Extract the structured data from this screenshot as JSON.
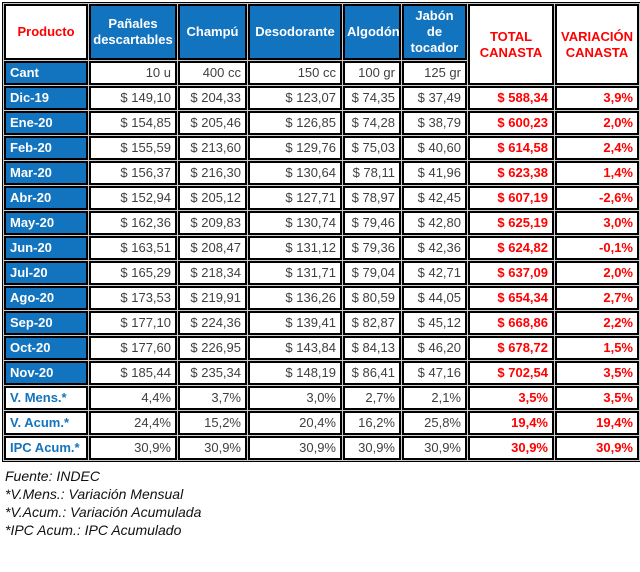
{
  "table": {
    "corner_header": "Producto",
    "qty_row_label": "Cant",
    "total_header": "TOTAL CANASTA",
    "variation_header": "VARIACIÓN CANASTA",
    "product_columns": [
      {
        "label": "Pañales descartables",
        "qty": "10 u"
      },
      {
        "label": "Champú",
        "qty": "400 cc"
      },
      {
        "label": "Desodorante",
        "qty": "150 cc"
      },
      {
        "label": "Algodón",
        "qty": "100 gr"
      },
      {
        "label": "Jabón de tocador",
        "qty": "125 gr"
      }
    ],
    "rows": [
      {
        "label": "Dic-19",
        "values": [
          "$ 149,10",
          "$ 204,33",
          "$ 123,07",
          "$ 74,35",
          "$ 37,49"
        ],
        "total": "$ 588,34",
        "variation": "3,9%"
      },
      {
        "label": "Ene-20",
        "values": [
          "$ 154,85",
          "$ 205,46",
          "$ 126,85",
          "$ 74,28",
          "$ 38,79"
        ],
        "total": "$ 600,23",
        "variation": "2,0%"
      },
      {
        "label": "Feb-20",
        "values": [
          "$ 155,59",
          "$ 213,60",
          "$ 129,76",
          "$ 75,03",
          "$ 40,60"
        ],
        "total": "$ 614,58",
        "variation": "2,4%"
      },
      {
        "label": "Mar-20",
        "values": [
          "$ 156,37",
          "$ 216,30",
          "$ 130,64",
          "$ 78,11",
          "$ 41,96"
        ],
        "total": "$ 623,38",
        "variation": "1,4%"
      },
      {
        "label": "Abr-20",
        "values": [
          "$ 152,94",
          "$ 205,12",
          "$ 127,71",
          "$ 78,97",
          "$ 42,45"
        ],
        "total": "$ 607,19",
        "variation": "-2,6%"
      },
      {
        "label": "May-20",
        "values": [
          "$ 162,36",
          "$ 209,83",
          "$ 130,74",
          "$ 79,46",
          "$ 42,80"
        ],
        "total": "$ 625,19",
        "variation": "3,0%"
      },
      {
        "label": "Jun-20",
        "values": [
          "$ 163,51",
          "$ 208,47",
          "$ 131,12",
          "$ 79,36",
          "$ 42,36"
        ],
        "total": "$ 624,82",
        "variation": "-0,1%"
      },
      {
        "label": "Jul-20",
        "values": [
          "$ 165,29",
          "$ 218,34",
          "$ 131,71",
          "$ 79,04",
          "$ 42,71"
        ],
        "total": "$ 637,09",
        "variation": "2,0%"
      },
      {
        "label": "Ago-20",
        "values": [
          "$ 173,53",
          "$ 219,91",
          "$ 136,26",
          "$ 80,59",
          "$ 44,05"
        ],
        "total": "$ 654,34",
        "variation": "2,7%"
      },
      {
        "label": "Sep-20",
        "values": [
          "$ 177,10",
          "$ 224,36",
          "$ 139,41",
          "$ 82,87",
          "$ 45,12"
        ],
        "total": "$ 668,86",
        "variation": "2,2%"
      },
      {
        "label": "Oct-20",
        "values": [
          "$ 177,60",
          "$ 226,95",
          "$ 143,84",
          "$ 84,13",
          "$ 46,20"
        ],
        "total": "$ 678,72",
        "variation": "1,5%"
      },
      {
        "label": "Nov-20",
        "values": [
          "$ 185,44",
          "$ 235,34",
          "$ 148,19",
          "$ 86,41",
          "$ 47,16"
        ],
        "total": "$ 702,54",
        "variation": "3,5%"
      }
    ],
    "summary_rows": [
      {
        "label": "V. Mens.*",
        "values": [
          "4,4%",
          "3,7%",
          "3,0%",
          "2,7%",
          "2,1%"
        ],
        "total": "3,5%",
        "variation": "3,5%"
      },
      {
        "label": "V. Acum.*",
        "values": [
          "24,4%",
          "15,2%",
          "20,4%",
          "16,2%",
          "25,8%"
        ],
        "total": "19,4%",
        "variation": "19,4%"
      },
      {
        "label": "IPC Acum.*",
        "values": [
          "30,9%",
          "30,9%",
          "30,9%",
          "30,9%",
          "30,9%"
        ],
        "total": "30,9%",
        "variation": "30,9%"
      }
    ]
  },
  "footnotes": [
    "Fuente: INDEC",
    "*V.Mens.: Variación Mensual",
    "*V.Acum.: Variación Acumulada",
    "*IPC Acum.: IPC Acumulado"
  ],
  "colors": {
    "header_blue": "#1273BF",
    "accent_red": "#FF0000",
    "data_text": "#3F3F3F",
    "border_black": "#000000"
  }
}
